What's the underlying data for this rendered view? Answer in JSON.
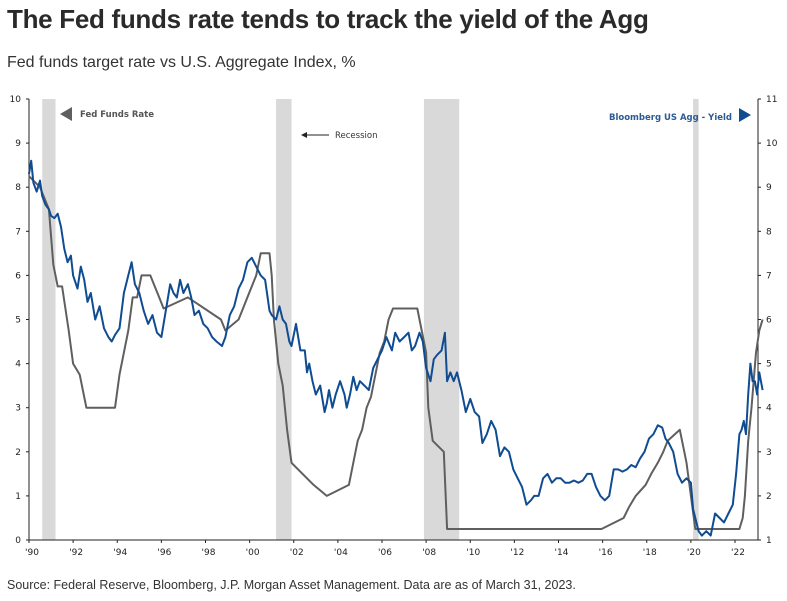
{
  "header": {
    "title": "The Fed funds rate tends to track the yield of the Agg",
    "subtitle": "Fed funds target rate vs U.S. Aggregate Index, %"
  },
  "footer": {
    "source": "Source: Federal Reserve, Bloomberg, J.P. Morgan Asset Management. Data are as of March 31, 2023."
  },
  "colors": {
    "fed_funds": "#5f5f5f",
    "agg_yield": "#0f4c92",
    "recession": "#d9d9d9",
    "axis": "#222222"
  },
  "chart_data": {
    "type": "line",
    "title": "Fed funds target rate vs U.S. Aggregate Index, %",
    "xlim": [
      1990,
      2023.25
    ],
    "x_ticks": [
      1990,
      1992,
      1994,
      1996,
      1998,
      2000,
      2002,
      2004,
      2006,
      2008,
      2010,
      2012,
      2014,
      2016,
      2018,
      2020,
      2022
    ],
    "x_tick_labels": [
      "'90",
      "'92",
      "'94",
      "'96",
      "'98",
      "'00",
      "'02",
      "'04",
      "'06",
      "'08",
      "'10",
      "'12",
      "'14",
      "'16",
      "'18",
      "'20",
      "'22"
    ],
    "y_left": {
      "label": "Fed Funds Rate",
      "ylim": [
        0,
        10
      ],
      "ticks": [
        0,
        1,
        2,
        3,
        4,
        5,
        6,
        7,
        8,
        9,
        10
      ]
    },
    "y_right": {
      "label": "Bloomberg US Agg - Yield",
      "ylim": [
        1,
        11
      ],
      "ticks": [
        1,
        2,
        3,
        4,
        5,
        6,
        7,
        8,
        9,
        10,
        11
      ]
    },
    "grid": false,
    "legend": [
      {
        "name": "Fed Funds Rate",
        "axis": "left",
        "placement": "top-left"
      },
      {
        "name": "Bloomberg US Agg - Yield",
        "axis": "right",
        "placement": "top-right"
      }
    ],
    "annotations": [
      {
        "text": "Recession",
        "placement": "top-center-left"
      }
    ],
    "recessions": [
      [
        1990.6,
        1991.2
      ],
      [
        2001.2,
        2001.9
      ],
      [
        2007.9,
        2009.5
      ],
      [
        2020.1,
        2020.35
      ]
    ],
    "series": [
      {
        "name": "Fed Funds Rate",
        "axis": "left",
        "step": true,
        "x": [
          1990,
          1990.5,
          1990.9,
          1991.1,
          1991.3,
          1991.5,
          1991.8,
          1992.0,
          1992.3,
          1992.6,
          1992.8,
          1993.5,
          1993.9,
          1994.1,
          1994.3,
          1994.5,
          1994.7,
          1994.9,
          1995.1,
          1995.5,
          1995.9,
          1996.1,
          1997.2,
          1998.7,
          1998.9,
          1999.5,
          1999.7,
          1999.9,
          2000.1,
          2000.3,
          2000.5,
          2000.9,
          2001.0,
          2001.1,
          2001.3,
          2001.5,
          2001.7,
          2001.9,
          2002.9,
          2003.5,
          2004.5,
          2004.7,
          2004.9,
          2005.1,
          2005.3,
          2005.5,
          2005.7,
          2005.9,
          2006.1,
          2006.3,
          2006.5,
          2007.6,
          2007.8,
          2008.0,
          2008.1,
          2008.3,
          2008.8,
          2008.95,
          2015.95,
          2016.95,
          2017.2,
          2017.5,
          2017.95,
          2018.2,
          2018.5,
          2018.75,
          2018.95,
          2019.5,
          2019.7,
          2019.8,
          2020.2,
          2022.2,
          2022.35,
          2022.45,
          2022.6,
          2022.75,
          2022.95,
          2023.1,
          2023.25
        ],
        "values": [
          8.25,
          8.0,
          7.5,
          6.25,
          5.75,
          5.75,
          4.75,
          4.0,
          3.75,
          3.0,
          3.0,
          3.0,
          3.0,
          3.75,
          4.25,
          4.75,
          5.5,
          5.5,
          6.0,
          6.0,
          5.5,
          5.25,
          5.5,
          5.0,
          4.75,
          5.0,
          5.25,
          5.5,
          5.75,
          6.0,
          6.5,
          6.5,
          6.0,
          5.0,
          4.0,
          3.5,
          2.5,
          1.75,
          1.25,
          1.0,
          1.25,
          1.75,
          2.25,
          2.5,
          3.0,
          3.25,
          3.75,
          4.25,
          4.5,
          5.0,
          5.25,
          5.25,
          4.75,
          4.25,
          3.0,
          2.25,
          2.0,
          0.25,
          0.25,
          0.5,
          0.75,
          1.0,
          1.25,
          1.5,
          1.75,
          2.0,
          2.25,
          2.5,
          2.0,
          1.75,
          0.25,
          0.25,
          0.5,
          1.0,
          2.25,
          3.0,
          4.25,
          4.75,
          5.0
        ]
      },
      {
        "name": "Bloomberg US Agg - Yield",
        "axis": "right",
        "x": [
          1990,
          1990.1,
          1990.2,
          1990.35,
          1990.5,
          1990.6,
          1990.75,
          1990.9,
          1991.0,
          1991.15,
          1991.3,
          1991.45,
          1991.6,
          1991.75,
          1991.9,
          1992.0,
          1992.2,
          1992.35,
          1992.5,
          1992.65,
          1992.8,
          1993.0,
          1993.2,
          1993.4,
          1993.6,
          1993.75,
          1993.9,
          1994.1,
          1994.3,
          1994.5,
          1994.65,
          1994.8,
          1995.0,
          1995.2,
          1995.4,
          1995.6,
          1995.8,
          1996.0,
          1996.2,
          1996.4,
          1996.55,
          1996.7,
          1996.85,
          1997.0,
          1997.2,
          1997.35,
          1997.5,
          1997.7,
          1997.9,
          1998.1,
          1998.3,
          1998.5,
          1998.75,
          1998.9,
          1999.1,
          1999.3,
          1999.5,
          1999.7,
          1999.9,
          2000.1,
          2000.3,
          2000.5,
          2000.7,
          2000.9,
          2001.0,
          2001.2,
          2001.35,
          2001.5,
          2001.65,
          2001.8,
          2001.9,
          2002.1,
          2002.3,
          2002.5,
          2002.6,
          2002.7,
          2002.85,
          2003.0,
          2003.2,
          2003.4,
          2003.5,
          2003.6,
          2003.75,
          2003.9,
          2004.1,
          2004.3,
          2004.4,
          2004.55,
          2004.7,
          2004.85,
          2005.0,
          2005.2,
          2005.4,
          2005.6,
          2005.8,
          2006.0,
          2006.2,
          2006.45,
          2006.6,
          2006.8,
          2007.0,
          2007.2,
          2007.35,
          2007.5,
          2007.7,
          2007.85,
          2008.0,
          2008.2,
          2008.35,
          2008.5,
          2008.7,
          2008.85,
          2008.95,
          2009.1,
          2009.25,
          2009.4,
          2009.6,
          2009.8,
          2010.0,
          2010.2,
          2010.4,
          2010.55,
          2010.75,
          2010.95,
          2011.15,
          2011.35,
          2011.55,
          2011.75,
          2011.95,
          2012.15,
          2012.35,
          2012.55,
          2012.75,
          2012.9,
          2013.1,
          2013.3,
          2013.5,
          2013.7,
          2013.9,
          2014.1,
          2014.3,
          2014.5,
          2014.7,
          2014.9,
          2015.1,
          2015.3,
          2015.5,
          2015.7,
          2015.9,
          2016.1,
          2016.3,
          2016.5,
          2016.7,
          2016.9,
          2017.1,
          2017.3,
          2017.5,
          2017.7,
          2017.9,
          2018.1,
          2018.3,
          2018.5,
          2018.7,
          2018.85,
          2019.0,
          2019.2,
          2019.4,
          2019.6,
          2019.8,
          2020.0,
          2020.1,
          2020.2,
          2020.35,
          2020.5,
          2020.7,
          2020.9,
          2021.1,
          2021.3,
          2021.5,
          2021.7,
          2021.9,
          2022.05,
          2022.2,
          2022.3,
          2022.4,
          2022.5,
          2022.6,
          2022.7,
          2022.8,
          2022.9,
          2023.0,
          2023.1,
          2023.25
        ],
        "values": [
          9.3,
          9.6,
          9.1,
          8.9,
          9.15,
          8.8,
          8.6,
          8.5,
          8.35,
          8.3,
          8.4,
          8.1,
          7.6,
          7.3,
          7.45,
          7.0,
          6.7,
          7.2,
          6.9,
          6.4,
          6.6,
          6.0,
          6.3,
          5.8,
          5.6,
          5.5,
          5.65,
          5.8,
          6.6,
          7.0,
          7.3,
          6.8,
          6.6,
          6.2,
          5.9,
          6.1,
          5.7,
          5.6,
          6.2,
          6.8,
          6.6,
          6.5,
          6.9,
          6.6,
          6.8,
          6.5,
          6.1,
          6.2,
          5.9,
          5.8,
          5.6,
          5.5,
          5.4,
          5.6,
          6.1,
          6.3,
          6.7,
          6.9,
          7.3,
          7.4,
          7.2,
          7.0,
          6.9,
          6.2,
          6.1,
          6.0,
          6.3,
          6.0,
          5.9,
          5.5,
          5.4,
          5.9,
          5.3,
          5.3,
          4.8,
          5.0,
          4.6,
          4.3,
          4.5,
          3.9,
          4.1,
          4.4,
          4.0,
          4.3,
          4.6,
          4.3,
          4.0,
          4.3,
          4.7,
          4.4,
          4.6,
          4.5,
          4.4,
          4.9,
          5.1,
          5.3,
          5.6,
          5.3,
          5.7,
          5.5,
          5.6,
          5.7,
          5.3,
          5.4,
          5.7,
          5.5,
          4.9,
          4.6,
          5.1,
          5.2,
          5.3,
          5.7,
          4.6,
          4.8,
          4.6,
          4.8,
          4.4,
          3.9,
          4.2,
          3.9,
          3.8,
          3.2,
          3.4,
          3.7,
          3.5,
          2.9,
          3.1,
          3.0,
          2.6,
          2.4,
          2.2,
          1.8,
          1.9,
          2.0,
          2.0,
          2.4,
          2.5,
          2.3,
          2.4,
          2.4,
          2.3,
          2.3,
          2.35,
          2.3,
          2.35,
          2.5,
          2.5,
          2.2,
          2.0,
          1.9,
          2.0,
          2.6,
          2.6,
          2.55,
          2.6,
          2.7,
          2.65,
          2.85,
          3.0,
          3.3,
          3.4,
          3.6,
          3.55,
          3.3,
          3.2,
          3.0,
          2.5,
          2.3,
          2.4,
          2.3,
          1.7,
          1.5,
          1.2,
          1.1,
          1.2,
          1.1,
          1.6,
          1.5,
          1.4,
          1.6,
          1.8,
          2.5,
          3.4,
          3.5,
          3.7,
          3.4,
          4.3,
          5.0,
          4.6,
          4.6,
          4.3,
          4.8,
          4.4
        ]
      }
    ]
  }
}
